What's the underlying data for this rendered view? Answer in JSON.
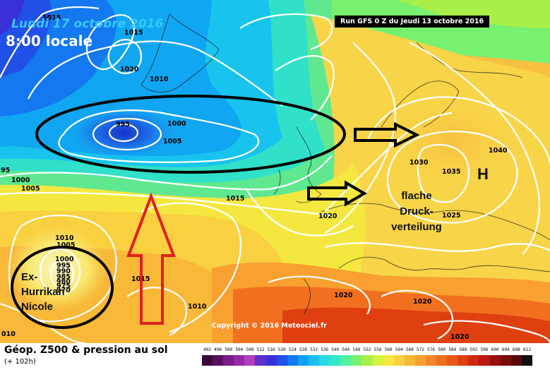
{
  "header": {
    "date_title": "Lundi 17 octobre 2016",
    "time_title": "8:00 locale",
    "run_info": "Run GFS 0 Z du Jeudi 13 octobre 2016"
  },
  "map": {
    "copyright": "Copyright © 2016 Meteociel.fr",
    "high_label": "H",
    "isobar_labels": [
      {
        "id": "isobar-1015-nw",
        "text": "1015"
      },
      {
        "id": "isobar-1015-n",
        "text": "1015"
      },
      {
        "id": "isobar-1020-n",
        "text": "1020"
      },
      {
        "id": "isobar-1010-n",
        "text": "1010"
      },
      {
        "id": "isobar-995",
        "text": "995"
      },
      {
        "id": "isobar-1000-low",
        "text": "1000"
      },
      {
        "id": "isobar-1005-low",
        "text": "1005"
      },
      {
        "id": "isobar-95-edge",
        "text": "95"
      },
      {
        "id": "isobar-1000-w",
        "text": "1000"
      },
      {
        "id": "isobar-1005-w",
        "text": "1005"
      },
      {
        "id": "isobar-1015-mid",
        "text": "1015"
      },
      {
        "id": "isobar-1020-uk",
        "text": "1020"
      },
      {
        "id": "isobar-1030",
        "text": "1030"
      },
      {
        "id": "isobar-1035",
        "text": "1035"
      },
      {
        "id": "isobar-1040",
        "text": "1040"
      },
      {
        "id": "isobar-1025",
        "text": "1025"
      },
      {
        "id": "isobar-1020-med",
        "text": "1020"
      },
      {
        "id": "isobar-1020-se",
        "text": "1020"
      },
      {
        "id": "isobar-1020-s",
        "text": "1020"
      },
      {
        "id": "isobar-1010-sw",
        "text": "1010"
      },
      {
        "id": "isobar-1010-nicole",
        "text": "1010"
      },
      {
        "id": "isobar-1005-nicole",
        "text": "1005"
      },
      {
        "id": "isobar-1000-nicole",
        "text": "1000"
      },
      {
        "id": "isobar-995-nicole",
        "text": "995"
      },
      {
        "id": "isobar-990-nicole",
        "text": "990"
      },
      {
        "id": "isobar-985-nicole",
        "text": "985"
      },
      {
        "id": "isobar-980-nicole",
        "text": "980"
      },
      {
        "id": "isobar-975-nicole",
        "text": "975"
      },
      {
        "id": "isobar-970-nicole",
        "text": "970"
      },
      {
        "id": "isobar-1015-s",
        "text": "1015"
      },
      {
        "id": "isobar-010-edge",
        "text": "010"
      }
    ],
    "annotations": {
      "flat_line1": "flache",
      "flat_line2": "Druck-",
      "flat_line3": "verteilung",
      "nicole_line1": "Ex-",
      "nicole_line2": "Hurrikan",
      "nicole_line3": "Nicole"
    },
    "colors": {
      "circle_stroke": "#000000",
      "red_arrow": "#e02020",
      "isobar": "#ffffff"
    }
  },
  "legend": {
    "title": "Géop. Z500 & pression au sol",
    "subtitle": "(+ 102h)",
    "scale_values": [
      "492",
      "496",
      "500",
      "504",
      "508",
      "512",
      "516",
      "520",
      "524",
      "528",
      "532",
      "536",
      "540",
      "544",
      "548",
      "552",
      "556",
      "560",
      "564",
      "568",
      "572",
      "576",
      "580",
      "584",
      "588",
      "592",
      "596",
      "600",
      "604",
      "608",
      "612"
    ],
    "scale_colors": [
      "#3a0a38",
      "#5a1060",
      "#7a1c88",
      "#9826a8",
      "#b040c0",
      "#6030c8",
      "#3a30d8",
      "#2050e8",
      "#1478f0",
      "#10a0f4",
      "#18c0f0",
      "#28d8e8",
      "#30e8c8",
      "#50f0a0",
      "#78f070",
      "#a8f048",
      "#d8f040",
      "#f4e840",
      "#f8d040",
      "#f8b838",
      "#f8a030",
      "#f48828",
      "#f07020",
      "#e85818",
      "#e04010",
      "#d02810",
      "#b81810",
      "#981010",
      "#780c0c",
      "#580808",
      "#101010"
    ]
  }
}
